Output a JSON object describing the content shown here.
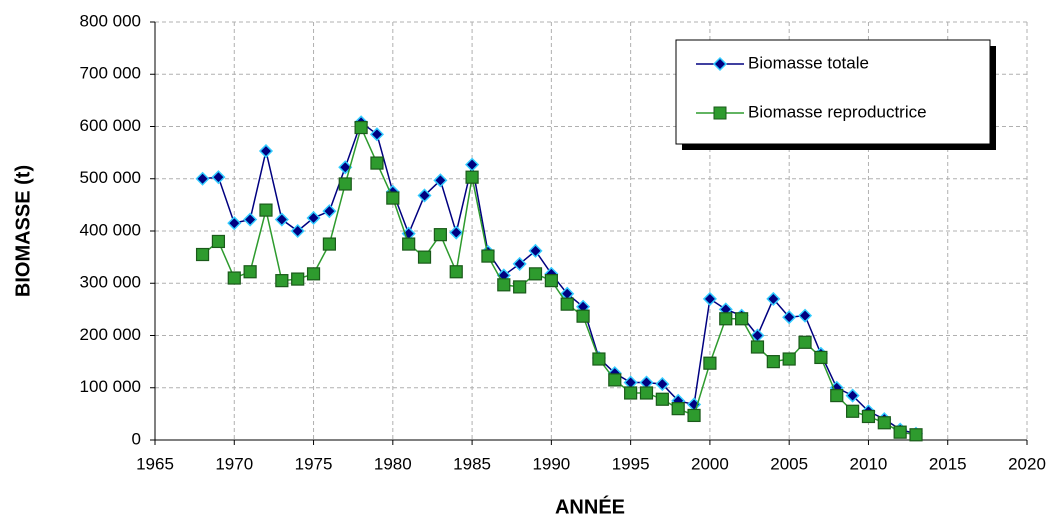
{
  "chart_data": {
    "type": "line",
    "xlabel": "ANNÉE",
    "ylabel": "BIOMASSE  (t)",
    "x": [
      1968,
      1969,
      1970,
      1971,
      1972,
      1973,
      1974,
      1975,
      1976,
      1977,
      1978,
      1979,
      1980,
      1981,
      1982,
      1983,
      1984,
      1985,
      1986,
      1987,
      1988,
      1989,
      1990,
      1991,
      1992,
      1993,
      1994,
      1995,
      1996,
      1997,
      1998,
      1999,
      2000,
      2001,
      2002,
      2003,
      2004,
      2005,
      2006,
      2007,
      2008,
      2009,
      2010,
      2011,
      2012,
      2013
    ],
    "series": [
      {
        "name": "Biomasse totale",
        "color": "#000080",
        "marker": "diamond",
        "values": [
          500000,
          503000,
          415000,
          422000,
          553000,
          422000,
          400000,
          425000,
          438000,
          522000,
          608000,
          585000,
          475000,
          395000,
          468000,
          497000,
          397000,
          527000,
          360000,
          315000,
          337000,
          362000,
          318000,
          280000,
          255000,
          157000,
          128000,
          110000,
          110000,
          107000,
          75000,
          68000,
          270000,
          250000,
          238000,
          200000,
          270000,
          235000,
          238000,
          165000,
          100000,
          85000,
          55000,
          40000,
          20000,
          12000
        ]
      },
      {
        "name": "Biomasse reproductrice",
        "color": "#2e9b2e",
        "marker": "square",
        "values": [
          355000,
          380000,
          310000,
          322000,
          440000,
          305000,
          308000,
          318000,
          375000,
          490000,
          598000,
          530000,
          463000,
          375000,
          350000,
          393000,
          322000,
          503000,
          352000,
          297000,
          293000,
          318000,
          305000,
          260000,
          237000,
          155000,
          115000,
          90000,
          90000,
          78000,
          60000,
          47000,
          147000,
          232000,
          232000,
          178000,
          150000,
          155000,
          187000,
          158000,
          85000,
          55000,
          45000,
          33000,
          15000,
          10000
        ]
      }
    ],
    "xlim": [
      1965,
      2020
    ],
    "xticks": [
      1965,
      1970,
      1975,
      1980,
      1985,
      1990,
      1995,
      2000,
      2005,
      2010,
      2015,
      2020
    ],
    "ylim": [
      0,
      800000
    ],
    "yticks": [
      0,
      {
        "value": 100000,
        "label": "100 000"
      },
      {
        "value": 200000,
        "label": "200 000"
      },
      {
        "value": 300000,
        "label": "300 000"
      },
      {
        "value": 400000,
        "label": "400 000"
      },
      {
        "value": 500000,
        "label": "500 000"
      },
      {
        "value": 600000,
        "label": "600 000"
      },
      {
        "value": 700000,
        "label": "700 000"
      },
      {
        "value": 800000,
        "label": "800 000"
      }
    ],
    "grid": true,
    "legend": "upper right"
  }
}
